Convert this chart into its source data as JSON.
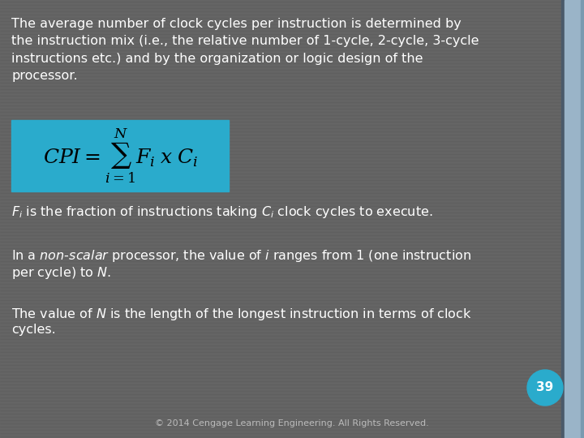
{
  "bg_color": "#636363",
  "right_bar_color1": "#7a8fa8",
  "right_bar_color2": "#adc4d8",
  "formula_box_color": "#2aabcc",
  "text_color": "#ffffff",
  "page_number": "39",
  "page_num_bg": "#2aabcc",
  "footer_text": "© 2014 Cengage Learning Engineering. All Rights Reserved.",
  "para1_line1": "The average number of clock cycles per instruction is determined by",
  "para1_line2": "the instruction mix (i.e., the relative number of 1-cycle, 2-cycle, 3-cycle",
  "para1_line3": "instructions etc.) and by the organization or logic design of the",
  "para1_line4": "processor.",
  "font_size_main": 11.5,
  "font_size_footer": 8,
  "font_size_formula": 18
}
